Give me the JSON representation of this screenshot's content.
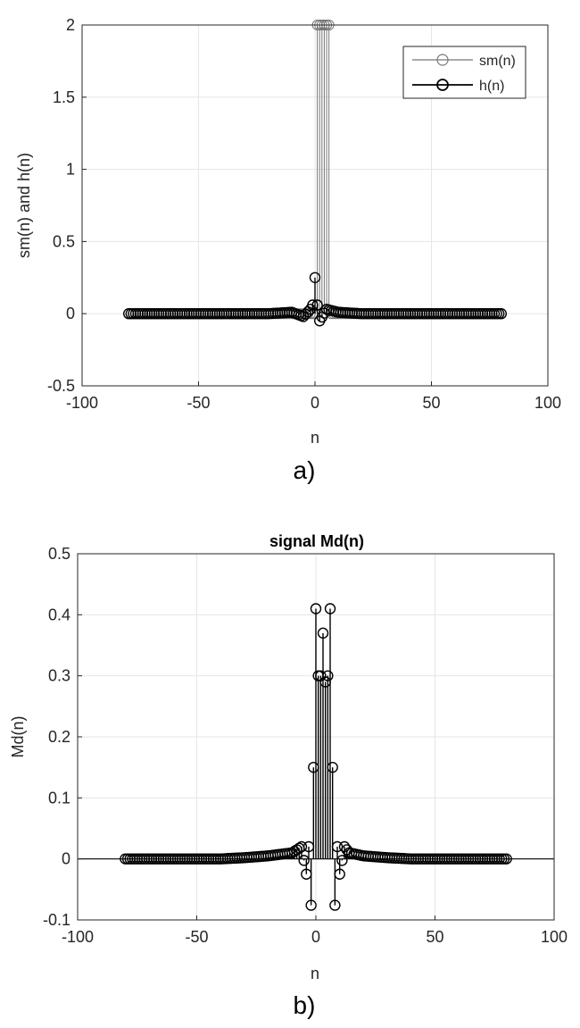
{
  "panels": [
    {
      "caption": "a)",
      "title": "",
      "xlabel": "n",
      "ylabel": "sm(n) and h(n)",
      "xlim": [
        -100,
        100
      ],
      "ylim": [
        -0.5,
        2
      ],
      "xticks": [
        "-100",
        "-50",
        "0",
        "50",
        "100"
      ],
      "yticks": [
        "-0.5",
        "0",
        "0.5",
        "1",
        "1.5",
        "2"
      ],
      "legend": [
        "sm(n)",
        "h(n)"
      ]
    },
    {
      "caption": "b)",
      "title": "signal Md(n)",
      "xlabel": "n",
      "ylabel": "Md(n)",
      "xlim": [
        -100,
        100
      ],
      "ylim": [
        -0.1,
        0.5
      ],
      "xticks": [
        "-100",
        "-50",
        "0",
        "50",
        "100"
      ],
      "yticks": [
        "-0.1",
        "0",
        "0.1",
        "0.2",
        "0.3",
        "0.4",
        "0.5"
      ],
      "legend": []
    }
  ],
  "chart_data": [
    {
      "type": "line",
      "title": "",
      "xlabel": "n",
      "ylabel": "sm(n) and h(n)",
      "xlim": [
        -100,
        100
      ],
      "ylim": [
        -0.5,
        2
      ],
      "grid": true,
      "legend_position": "top-right",
      "series": [
        {
          "name": "sm(n)",
          "style": "stem",
          "color": "#777777",
          "x": [
            -80,
            0,
            1,
            2,
            3,
            4,
            5,
            6,
            7,
            80
          ],
          "y": [
            0,
            0,
            2,
            2,
            2,
            2,
            2,
            2,
            0,
            0
          ]
        },
        {
          "name": "h(n)",
          "style": "stem",
          "color": "#000000",
          "x": [
            -80,
            -60,
            -40,
            -20,
            -10,
            -5,
            -2,
            -1,
            0,
            1,
            2,
            5,
            10,
            20,
            40,
            60,
            80
          ],
          "y": [
            0,
            0,
            0,
            0,
            0.01,
            -0.02,
            0.03,
            0.06,
            0.25,
            0.06,
            -0.05,
            0.03,
            0.01,
            0,
            0,
            0,
            0
          ]
        }
      ]
    },
    {
      "type": "line",
      "title": "signal Md(n)",
      "xlabel": "n",
      "ylabel": "Md(n)",
      "xlim": [
        -100,
        100
      ],
      "ylim": [
        -0.1,
        0.5
      ],
      "grid": true,
      "series": [
        {
          "name": "",
          "style": "stem",
          "color": "#000000",
          "x": [
            -80,
            -60,
            -40,
            -30,
            -20,
            -10,
            -6,
            -4,
            -3,
            -2,
            -1,
            0,
            1,
            2,
            3,
            4,
            5,
            6,
            7,
            8,
            9,
            10,
            12,
            14,
            20,
            30,
            40,
            60,
            80
          ],
          "y": [
            0,
            0,
            0,
            0.002,
            0.005,
            0.01,
            0.02,
            -0.025,
            0.02,
            -0.076,
            0.15,
            0.41,
            0.3,
            0.3,
            0.37,
            0.29,
            0.3,
            0.41,
            0.15,
            -0.076,
            0.02,
            -0.025,
            0.02,
            0.01,
            0.005,
            0.002,
            0,
            0,
            0
          ]
        }
      ]
    }
  ]
}
